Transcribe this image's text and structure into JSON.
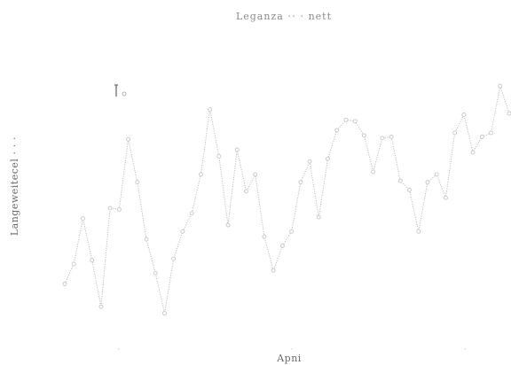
{
  "chart_data": {
    "type": "line",
    "title": "Leganza ⋅⋅ ⋅ nett",
    "xlabel": "Apni",
    "ylabel": "Langeweitecel ⋅ ⋅ ⋅",
    "series": [
      {
        "color": "#bdbdbd",
        "x": [
          0,
          1,
          2,
          3,
          4,
          5,
          6,
          7,
          8,
          9,
          10,
          11,
          12,
          13,
          14,
          15,
          16,
          17,
          18,
          19,
          20,
          21,
          22,
          23,
          24,
          25,
          26,
          27,
          28,
          29,
          30,
          31,
          32,
          33,
          34,
          35,
          36,
          37,
          38,
          39,
          40,
          41,
          42,
          43,
          44,
          45,
          46,
          47,
          48,
          49
        ],
        "values": [
          12.8,
          20.5,
          38.0,
          22.0,
          4.0,
          42.0,
          41.5,
          68.5,
          52.0,
          30.0,
          17.0,
          1.5,
          22.5,
          33.0,
          40.0,
          55.0,
          80.0,
          62.0,
          35.5,
          64.5,
          48.5,
          55.0,
          31.0,
          18.0,
          27.5,
          33.0,
          52.0,
          60.0,
          38.5,
          61.0,
          72.0,
          76.0,
          75.5,
          70.0,
          56.0,
          69.0,
          69.5,
          52.5,
          49.0,
          33.0,
          52.0,
          55.0,
          46.0,
          71.0,
          78.0,
          63.5,
          69.5,
          71.0,
          89.0,
          78.5
        ]
      }
    ],
    "grid": false,
    "legend": "none",
    "markers": "open-circle",
    "line_style": "dotted"
  }
}
